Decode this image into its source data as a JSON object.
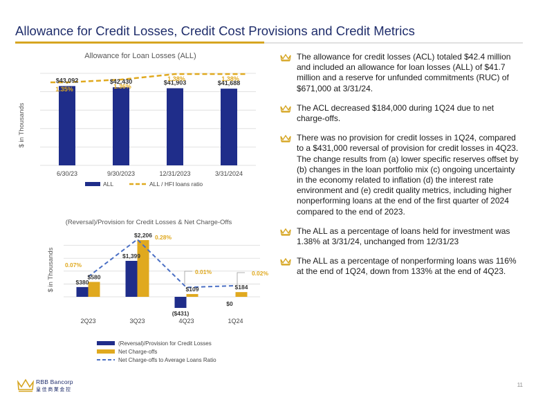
{
  "header": {
    "title": "Allowance for Credit Losses, Credit Cost Provisions and Credit Metrics"
  },
  "chart_data": [
    {
      "type": "bar",
      "title": "Allowance for Loan Losses (ALL)",
      "ylabel": "$ in Thousands",
      "categories": [
        "6/30/23",
        "9/30/2023",
        "12/31/2023",
        "3/31/2024"
      ],
      "ylim": [
        0,
        50000
      ],
      "series": [
        {
          "name": "ALL",
          "type": "bar",
          "values": [
            43092,
            42430,
            41903,
            41688
          ],
          "labels": [
            "$43,092",
            "$42,430",
            "$41,903",
            "$41,688"
          ],
          "color": "#1f2d8a"
        },
        {
          "name": "ALL / HFI loans ratio",
          "type": "line",
          "style": "dashed",
          "values": [
            1.35,
            1.36,
            1.38,
            1.38
          ],
          "labels": [
            "1.35%",
            "1.36%",
            "1.38%",
            "1.38%"
          ],
          "color": "#e0a91f"
        }
      ],
      "legend": "bottom",
      "grid": true
    },
    {
      "type": "bar",
      "title": "(Reversal)/Provision  for Credit  Losses  & Net Charge-Offs",
      "ylabel": "$ in Thousands",
      "categories": [
        "2Q23",
        "3Q23",
        "4Q23",
        "1Q24"
      ],
      "series": [
        {
          "name": "(Reversal)/Provision for Credit Losses",
          "type": "bar",
          "values": [
            380,
            1399,
            -431,
            0
          ],
          "labels": [
            "$380",
            "$1,399",
            "($431)",
            "$0"
          ],
          "color": "#1f2d8a"
        },
        {
          "name": "Net Charge-offs",
          "type": "bar",
          "values": [
            580,
            2206,
            109,
            184
          ],
          "labels": [
            "$580",
            "$2,206",
            "$109",
            "$184"
          ],
          "color": "#e0a91f"
        },
        {
          "name": "Net Charge-offs to Average Loans Ratio",
          "type": "line",
          "style": "dashed",
          "values": [
            0.07,
            0.28,
            0.01,
            0.02
          ],
          "labels": [
            "0.07%",
            "0.28%",
            "0.01%",
            "0.02%"
          ],
          "color": "#4a6fc4"
        }
      ],
      "legend": "bottom",
      "grid": true
    }
  ],
  "bullets": [
    "The allowance for credit losses (ACL) totaled $42.4 million and included an allowance for loan losses (ALL) of $41.7 million and a reserve for unfunded commitments (RUC) of $671,000 at 3/31/24.",
    "The ACL decreased $184,000 during 1Q24 due to net charge-offs.",
    "There was no provision for credit losses in 1Q24, compared to a $431,000 reversal of provision for credit losses in 4Q23. The change results from (a) lower specific reserves offset by (b) changes in the loan portfolio mix (c) ongoing uncertainty in the economy related to inflation (d) the interest rate environment and (e) credit quality metrics, including higher nonperforming loans at the end of the first quarter of 2024 compared to the end of 2023.",
    "The ALL as a percentage of loans held for investment was 1.38% at 3/31/24, unchanged from 12/31/23",
    "The ALL as a percentage of nonperforming loans was 116% at the end of 1Q24, down from 133% at the end of 4Q23."
  ],
  "footer": {
    "logo_name": "RBB Bancorp",
    "logo_subtitle": "皇佳商業金控",
    "page_number": "11"
  },
  "colors": {
    "navy": "#1f2d8a",
    "gold": "#e0a91f",
    "blue_dash": "#4a6fc4",
    "title": "#1f2d6b"
  }
}
